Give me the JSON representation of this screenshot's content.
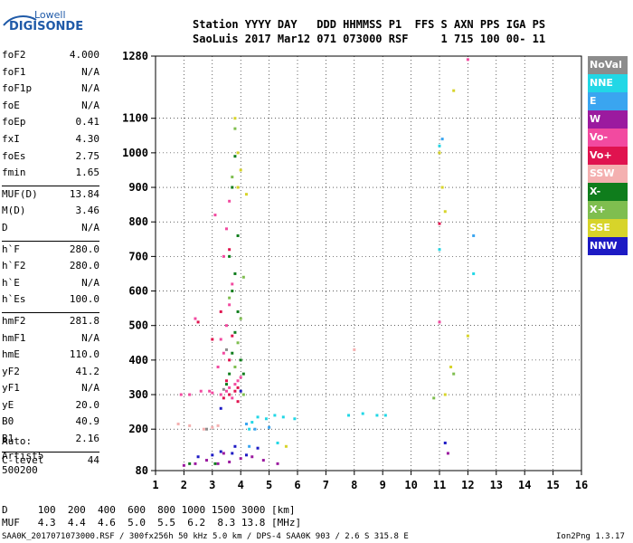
{
  "logo": {
    "line1": "Lowell",
    "line2": "DIGISONDE"
  },
  "header": {
    "line1": "Station YYYY DAY   DDD HHMMSS P1  FFS S AXN PPS IGA PS",
    "line2": "SaoLuis 2017 Mar12 071 073000 RSF     1 715 100 00- 11"
  },
  "params": [
    {
      "k": "foF2",
      "v": "4.000"
    },
    {
      "k": "foF1",
      "v": "N/A"
    },
    {
      "k": "foF1p",
      "v": "N/A"
    },
    {
      "k": "foE",
      "v": "N/A"
    },
    {
      "k": "foEp",
      "v": "0.41"
    },
    {
      "k": "fxI",
      "v": "4.30"
    },
    {
      "k": "foEs",
      "v": "2.75"
    },
    {
      "k": "fmin",
      "v": "1.65"
    },
    {
      "k": "MUF(D)",
      "v": "13.84"
    },
    {
      "k": "M(D)",
      "v": "3.46"
    },
    {
      "k": "D",
      "v": "N/A"
    },
    {
      "k": "h`F",
      "v": "280.0"
    },
    {
      "k": "h`F2",
      "v": "280.0"
    },
    {
      "k": "h`E",
      "v": "N/A"
    },
    {
      "k": "h`Es",
      "v": "100.0"
    },
    {
      "k": "hmF2",
      "v": "281.8"
    },
    {
      "k": "hmF1",
      "v": "N/A"
    },
    {
      "k": "hmE",
      "v": "110.0"
    },
    {
      "k": "yF2",
      "v": "41.2"
    },
    {
      "k": "yF1",
      "v": "N/A"
    },
    {
      "k": "yE",
      "v": "20.0"
    },
    {
      "k": "B0",
      "v": "40.9"
    },
    {
      "k": "B1",
      "v": "2.16"
    },
    {
      "k": "C-level",
      "v": "44"
    }
  ],
  "autoscaling": {
    "line1": "Auto:",
    "line2": "Artist5",
    "line3": "500200"
  },
  "legend": [
    {
      "label": "NoVal",
      "bg": "#8c8c8c",
      "fg": "#ffffff"
    },
    {
      "label": "NNE",
      "bg": "#22d7e6",
      "fg": "#ffffff"
    },
    {
      "label": "E",
      "bg": "#3aa5f0",
      "fg": "#ffffff"
    },
    {
      "label": "W",
      "bg": "#9b1a9f",
      "fg": "#ffffff"
    },
    {
      "label": "Vo-",
      "bg": "#f24aa0",
      "fg": "#ffffff"
    },
    {
      "label": "Vo+",
      "bg": "#e0134f",
      "fg": "#ffffff"
    },
    {
      "label": "SSW",
      "bg": "#f4b0b0",
      "fg": "#ffffff"
    },
    {
      "label": "X-",
      "bg": "#0f7d1c",
      "fg": "#ffffff"
    },
    {
      "label": "X+",
      "bg": "#7fbe4f",
      "fg": "#ffffff"
    },
    {
      "label": "SSE",
      "bg": "#d7d42a",
      "fg": "#ffffff"
    },
    {
      "label": "NNW",
      "bg": "#1d1ac4",
      "fg": "#ffffff"
    }
  ],
  "bottom": {
    "dline": "D     100  200  400  600  800 1000 1500 3000 [km]",
    "mufline": "MUF   4.3  4.4  4.6  5.0  5.5  6.2  8.3 13.8 [MHz]",
    "footer_left": "SAA0K_2017071073000.RSF / 300fx256h 50 kHz 5.0 km / DPS-4 SAA0K 903 / 2.6 S 315.8 E",
    "footer_right": "Ion2Png 1.3.17"
  },
  "chart_data": {
    "type": "scatter",
    "title": "",
    "xlabel": "",
    "ylabel": "",
    "xlim": [
      1,
      16
    ],
    "ylim": [
      80,
      1280
    ],
    "x_ticks": [
      "1",
      "2",
      "3",
      "4",
      "5",
      "6",
      "7",
      "8",
      "9",
      "10",
      "11",
      "12",
      "13",
      "14",
      "15",
      "16"
    ],
    "y_ticks": [
      "80",
      "200",
      "300",
      "400",
      "500",
      "600",
      "700",
      "800",
      "900",
      "1000",
      "1100",
      "1280"
    ],
    "grid": true,
    "legend_position": "right",
    "series": [
      {
        "name": "Vo-",
        "color": "#f24aa0",
        "points": [
          [
            3.3,
            300
          ],
          [
            3.5,
            310
          ],
          [
            3.6,
            320
          ],
          [
            3.8,
            330
          ],
          [
            3.9,
            340
          ],
          [
            4.0,
            350
          ],
          [
            3.4,
            420
          ],
          [
            3.5,
            500
          ],
          [
            3.6,
            560
          ],
          [
            3.7,
            620
          ],
          [
            3.2,
            380
          ],
          [
            3.3,
            460
          ],
          [
            3.4,
            700
          ],
          [
            3.5,
            780
          ],
          [
            3.6,
            860
          ],
          [
            2.6,
            310
          ],
          [
            2.9,
            310
          ],
          [
            3.0,
            305
          ],
          [
            2.2,
            300
          ],
          [
            1.9,
            300
          ],
          [
            3.7,
            290
          ],
          [
            11.0,
            510
          ],
          [
            12.0,
            1270
          ],
          [
            2.4,
            520
          ],
          [
            3.1,
            820
          ]
        ]
      },
      {
        "name": "Vo+",
        "color": "#e0134f",
        "points": [
          [
            3.4,
            290
          ],
          [
            3.6,
            300
          ],
          [
            3.8,
            310
          ],
          [
            3.9,
            320
          ],
          [
            3.5,
            340
          ],
          [
            3.6,
            400
          ],
          [
            3.7,
            470
          ],
          [
            3.3,
            540
          ],
          [
            3.6,
            720
          ],
          [
            11.0,
            795
          ],
          [
            2.5,
            510
          ],
          [
            3.0,
            460
          ],
          [
            3.9,
            280
          ]
        ]
      },
      {
        "name": "X-",
        "color": "#0f7d1c",
        "points": [
          [
            3.6,
            360
          ],
          [
            3.7,
            420
          ],
          [
            3.8,
            480
          ],
          [
            3.9,
            540
          ],
          [
            3.7,
            600
          ],
          [
            3.8,
            650
          ],
          [
            3.6,
            700
          ],
          [
            3.9,
            760
          ],
          [
            3.5,
            330
          ],
          [
            4.0,
            400
          ],
          [
            3.7,
            900
          ],
          [
            3.8,
            990
          ],
          [
            4.1,
            360
          ],
          [
            2.2,
            100
          ],
          [
            3.1,
            100
          ]
        ]
      },
      {
        "name": "X+",
        "color": "#7fbe4f",
        "points": [
          [
            3.8,
            380
          ],
          [
            3.9,
            450
          ],
          [
            4.0,
            520
          ],
          [
            3.6,
            580
          ],
          [
            4.1,
            640
          ],
          [
            3.7,
            930
          ],
          [
            3.8,
            1070
          ],
          [
            11.5,
            360
          ],
          [
            10.8,
            290
          ],
          [
            4.1,
            300
          ]
        ]
      },
      {
        "name": "NNE",
        "color": "#22d7e6",
        "points": [
          [
            4.6,
            235
          ],
          [
            4.9,
            230
          ],
          [
            5.2,
            240
          ],
          [
            5.5,
            235
          ],
          [
            5.9,
            230
          ],
          [
            7.8,
            240
          ],
          [
            8.3,
            245
          ],
          [
            8.8,
            240
          ],
          [
            9.1,
            240
          ],
          [
            4.4,
            220
          ],
          [
            4.3,
            200
          ],
          [
            11.0,
            1020
          ],
          [
            11.0,
            720
          ],
          [
            12.2,
            650
          ],
          [
            5.3,
            160
          ]
        ]
      },
      {
        "name": "E",
        "color": "#3aa5f0",
        "points": [
          [
            4.5,
            200
          ],
          [
            5.0,
            205
          ],
          [
            4.2,
            215
          ],
          [
            11.1,
            1040
          ],
          [
            12.2,
            760
          ],
          [
            4.3,
            150
          ]
        ]
      },
      {
        "name": "W",
        "color": "#9b1a9f",
        "points": [
          [
            2.0,
            95
          ],
          [
            2.4,
            100
          ],
          [
            2.8,
            110
          ],
          [
            3.2,
            100
          ],
          [
            3.6,
            105
          ],
          [
            4.0,
            115
          ],
          [
            4.4,
            120
          ],
          [
            4.8,
            110
          ],
          [
            5.3,
            100
          ],
          [
            3.4,
            130
          ],
          [
            11.3,
            130
          ]
        ]
      },
      {
        "name": "SSW",
        "color": "#f4b0b0",
        "points": [
          [
            2.7,
            200
          ],
          [
            3.0,
            205
          ],
          [
            3.2,
            210
          ],
          [
            1.8,
            215
          ],
          [
            2.2,
            210
          ],
          [
            8.0,
            430
          ]
        ]
      },
      {
        "name": "SSE",
        "color": "#d7d42a",
        "points": [
          [
            3.8,
            1100
          ],
          [
            3.9,
            1000
          ],
          [
            4.0,
            950
          ],
          [
            3.9,
            900
          ],
          [
            4.2,
            880
          ],
          [
            5.6,
            150
          ],
          [
            11.0,
            1000
          ],
          [
            11.1,
            900
          ],
          [
            11.2,
            830
          ],
          [
            11.5,
            1180
          ],
          [
            12.0,
            470
          ],
          [
            11.4,
            380
          ],
          [
            11.2,
            300
          ]
        ]
      },
      {
        "name": "NNW",
        "color": "#1d1ac4",
        "points": [
          [
            3.0,
            125
          ],
          [
            3.3,
            135
          ],
          [
            3.7,
            130
          ],
          [
            4.2,
            125
          ],
          [
            3.8,
            150
          ],
          [
            4.6,
            145
          ],
          [
            2.5,
            120
          ],
          [
            11.2,
            160
          ],
          [
            4.0,
            310
          ],
          [
            3.3,
            260
          ]
        ]
      },
      {
        "name": "NoVal",
        "color": "#8c8c8c",
        "points": [
          [
            3.4,
            315
          ],
          [
            3.5,
            430
          ],
          [
            2.8,
            200
          ]
        ]
      }
    ]
  }
}
